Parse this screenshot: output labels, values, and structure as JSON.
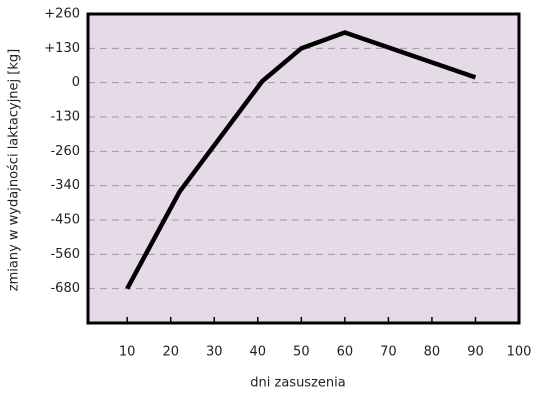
{
  "chart_data": {
    "type": "line",
    "x_label": "dni zasuszenia",
    "y_label": "zmiany w wydajności laktacyjnej [kg]",
    "x": [
      10,
      22,
      41,
      50,
      60,
      90
    ],
    "series": [
      {
        "color": "#000000",
        "values": [
          -680,
          -360,
          5,
          130,
          190,
          20
        ]
      }
    ],
    "xlim": [
      1,
      100
    ],
    "xticks": [
      10,
      20,
      30,
      40,
      50,
      60,
      70,
      80,
      90,
      100
    ],
    "ylim": [
      -800,
      260
    ],
    "yticks": [
      {
        "value": 260,
        "label": "+260"
      },
      {
        "value": 130,
        "label": "+130"
      },
      0,
      -130,
      -260,
      -340,
      -450,
      -560,
      -680
    ],
    "grid": true,
    "background": "#e6dae8"
  }
}
